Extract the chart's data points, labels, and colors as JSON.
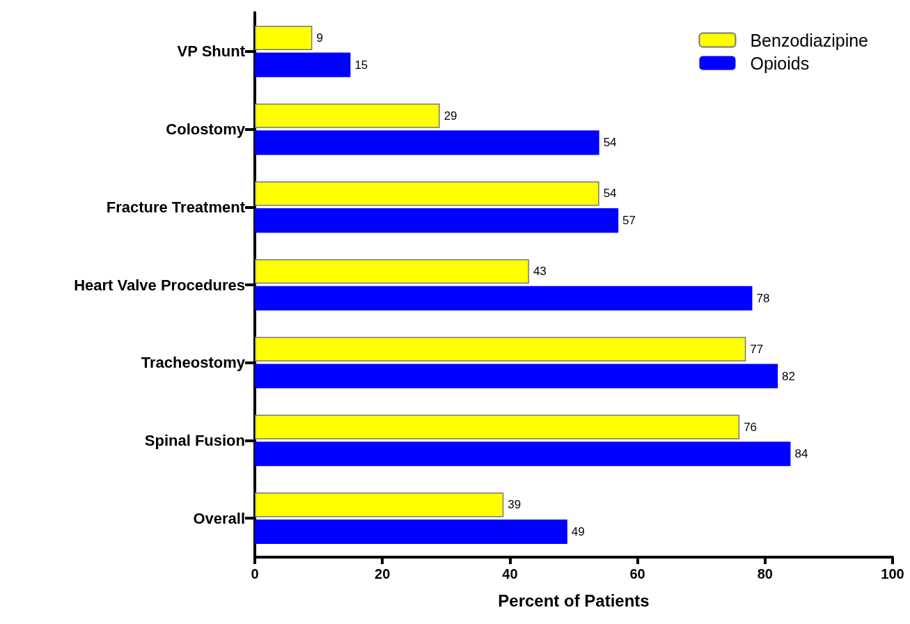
{
  "chart_data": {
    "type": "bar",
    "orientation": "horizontal",
    "xlabel": "Percent of Patients",
    "categories": [
      "VP Shunt",
      "Colostomy",
      "Fracture Treatment",
      "Heart Valve Procedures",
      "Tracheostomy",
      "Spinal Fusion",
      "Overall"
    ],
    "series": [
      {
        "name": "Benzodiazipine",
        "color": "#ffff00",
        "values": [
          9,
          29,
          54,
          43,
          77,
          76,
          39
        ]
      },
      {
        "name": "Opioids",
        "color": "#0000ff",
        "values": [
          15,
          54,
          57,
          78,
          82,
          84,
          49
        ]
      }
    ],
    "xlim": [
      0,
      100
    ],
    "xticks": [
      0,
      20,
      40,
      60,
      80,
      100
    ],
    "data_labels": true,
    "grid": false,
    "legend": "top right"
  }
}
